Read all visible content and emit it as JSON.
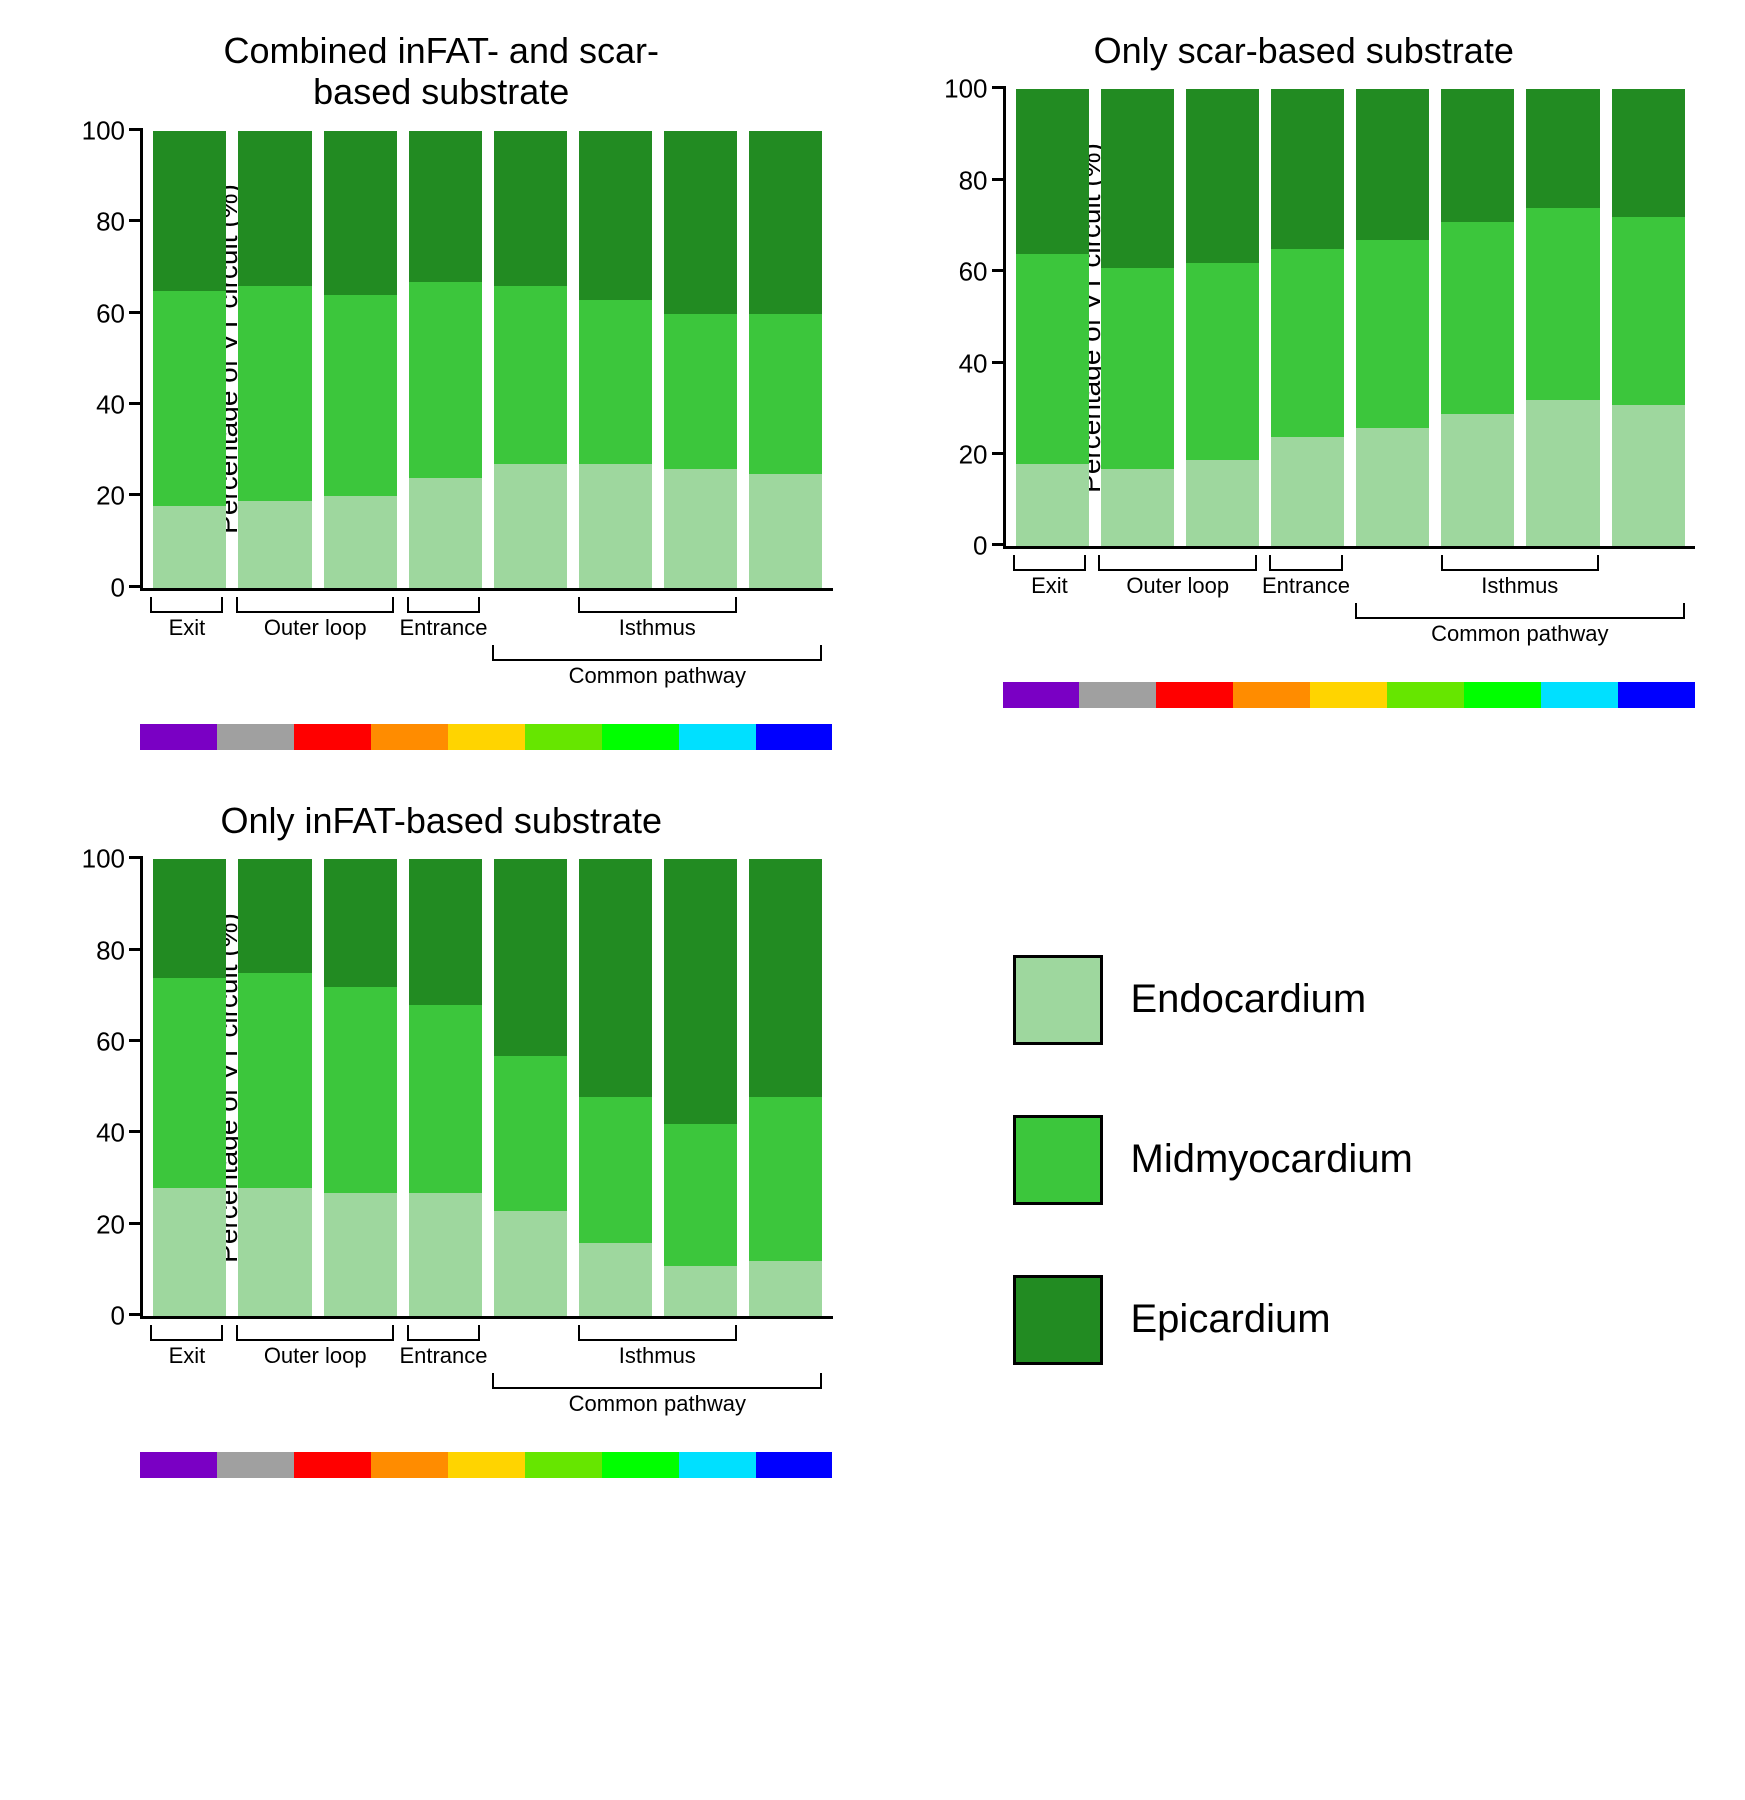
{
  "colors": {
    "endo": "#9ed79e",
    "mid": "#3cc63c",
    "epi": "#228b22",
    "axis": "#000000",
    "bg": "#ffffff"
  },
  "rainbow": [
    "#7a00c4",
    "#a0a0a0",
    "#ff0000",
    "#ff8c00",
    "#ffd400",
    "#66e600",
    "#00ff00",
    "#00e0ff",
    "#0000ff"
  ],
  "ylabel": "Percentage of VT circuit (%)",
  "ylim": [
    0,
    100
  ],
  "yticks": [
    0,
    20,
    40,
    60,
    80,
    100
  ],
  "group_labels": {
    "exit": "Exit",
    "outer_loop": "Outer loop",
    "entrance": "Entrance",
    "isthmus": "Isthmus",
    "common_pathway": "Common pathway"
  },
  "legend": {
    "endo": "Endocardium",
    "mid": "Midmyocardium",
    "epi": "Epicardium"
  },
  "panels": [
    {
      "title": "Combined inFAT- and scar-\nbased substrate",
      "bars": [
        {
          "endo": 18,
          "mid": 47,
          "epi": 35
        },
        {
          "endo": 19,
          "mid": 47,
          "epi": 34
        },
        {
          "endo": 20,
          "mid": 44,
          "epi": 36
        },
        {
          "endo": 24,
          "mid": 43,
          "epi": 33
        },
        {
          "endo": 27,
          "mid": 39,
          "epi": 34
        },
        {
          "endo": 27,
          "mid": 36,
          "epi": 37
        },
        {
          "endo": 26,
          "mid": 34,
          "epi": 40
        },
        {
          "endo": 25,
          "mid": 35,
          "epi": 40
        }
      ]
    },
    {
      "title": "Only scar-based substrate",
      "bars": [
        {
          "endo": 18,
          "mid": 46,
          "epi": 36
        },
        {
          "endo": 17,
          "mid": 44,
          "epi": 39
        },
        {
          "endo": 19,
          "mid": 43,
          "epi": 38
        },
        {
          "endo": 24,
          "mid": 41,
          "epi": 35
        },
        {
          "endo": 26,
          "mid": 41,
          "epi": 33
        },
        {
          "endo": 29,
          "mid": 42,
          "epi": 29
        },
        {
          "endo": 32,
          "mid": 42,
          "epi": 26
        },
        {
          "endo": 31,
          "mid": 41,
          "epi": 28
        }
      ]
    },
    {
      "title": "Only inFAT-based substrate",
      "bars": [
        {
          "endo": 28,
          "mid": 46,
          "epi": 26
        },
        {
          "endo": 28,
          "mid": 47,
          "epi": 25
        },
        {
          "endo": 27,
          "mid": 45,
          "epi": 28
        },
        {
          "endo": 27,
          "mid": 41,
          "epi": 32
        },
        {
          "endo": 23,
          "mid": 34,
          "epi": 43
        },
        {
          "endo": 16,
          "mid": 32,
          "epi": 52
        },
        {
          "endo": 11,
          "mid": 31,
          "epi": 58
        },
        {
          "endo": 12,
          "mid": 36,
          "epi": 52
        }
      ]
    }
  ],
  "groups": [
    {
      "label_key": "exit",
      "start": 0,
      "end": 0,
      "row": 0
    },
    {
      "label_key": "outer_loop",
      "start": 1,
      "end": 2,
      "row": 0
    },
    {
      "label_key": "entrance",
      "start": 3,
      "end": 3,
      "row": 0
    },
    {
      "label_key": "isthmus",
      "start": 5,
      "end": 6,
      "row": 0
    },
    {
      "label_key": "common_pathway",
      "start": 4,
      "end": 7,
      "row": 1
    }
  ],
  "bar_layout": {
    "pad_pct": 1.5,
    "gap_pct": 1.8
  },
  "fontsize": {
    "title": 36,
    "ylabel": 28,
    "tick": 26,
    "group": 22,
    "legend": 40
  }
}
